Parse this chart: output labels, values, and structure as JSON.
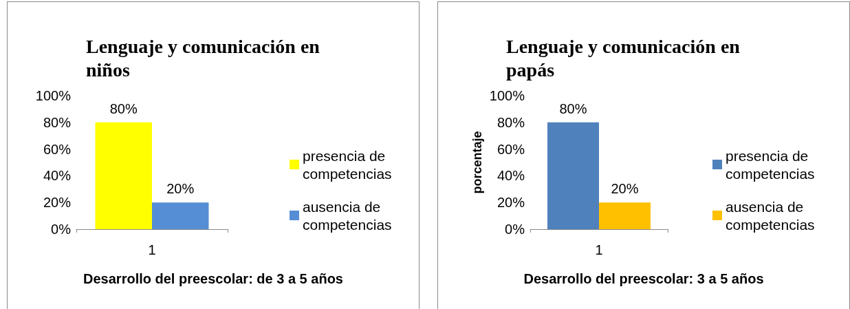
{
  "chart_data": [
    {
      "type": "bar",
      "title": "Lenguaje y comunicación en niños",
      "xlabel": "Desarrollo del preescolar: de 3 a 5 años",
      "categories": [
        "1"
      ],
      "series": [
        {
          "name": "presencia de competencias",
          "color": "#ffff00",
          "values": [
            80
          ],
          "value_labels": [
            "80%"
          ]
        },
        {
          "name": "ausencia de competencias",
          "color": "#558ed5",
          "values": [
            20
          ],
          "value_labels": [
            "20%"
          ]
        }
      ],
      "ylim": [
        0,
        100
      ],
      "yticks": [
        {
          "value": 0,
          "label": "0%"
        },
        {
          "value": 20,
          "label": "20%"
        },
        {
          "value": 40,
          "label": "40%"
        },
        {
          "value": 60,
          "label": "60%"
        },
        {
          "value": 80,
          "label": "80%"
        },
        {
          "value": 100,
          "label": "100%"
        }
      ],
      "grid": false,
      "legend": "right"
    },
    {
      "type": "bar",
      "title": "Lenguaje y comunicación en papás",
      "xlabel": "Desarrollo del preescolar: 3 a 5 años",
      "ylabel": "porcentaje",
      "categories": [
        "1"
      ],
      "series": [
        {
          "name": "presencia de competencias",
          "color": "#4f81bd",
          "values": [
            80
          ],
          "value_labels": [
            "80%"
          ]
        },
        {
          "name": "ausencia de competencias",
          "color": "#ffc000",
          "values": [
            20
          ],
          "value_labels": [
            "20%"
          ]
        }
      ],
      "ylim": [
        0,
        100
      ],
      "yticks": [
        {
          "value": 0,
          "label": "0%"
        },
        {
          "value": 20,
          "label": "20%"
        },
        {
          "value": 40,
          "label": "40%"
        },
        {
          "value": 60,
          "label": "60%"
        },
        {
          "value": 80,
          "label": "80%"
        },
        {
          "value": 100,
          "label": "100%"
        }
      ],
      "grid": false,
      "legend": "right"
    }
  ]
}
